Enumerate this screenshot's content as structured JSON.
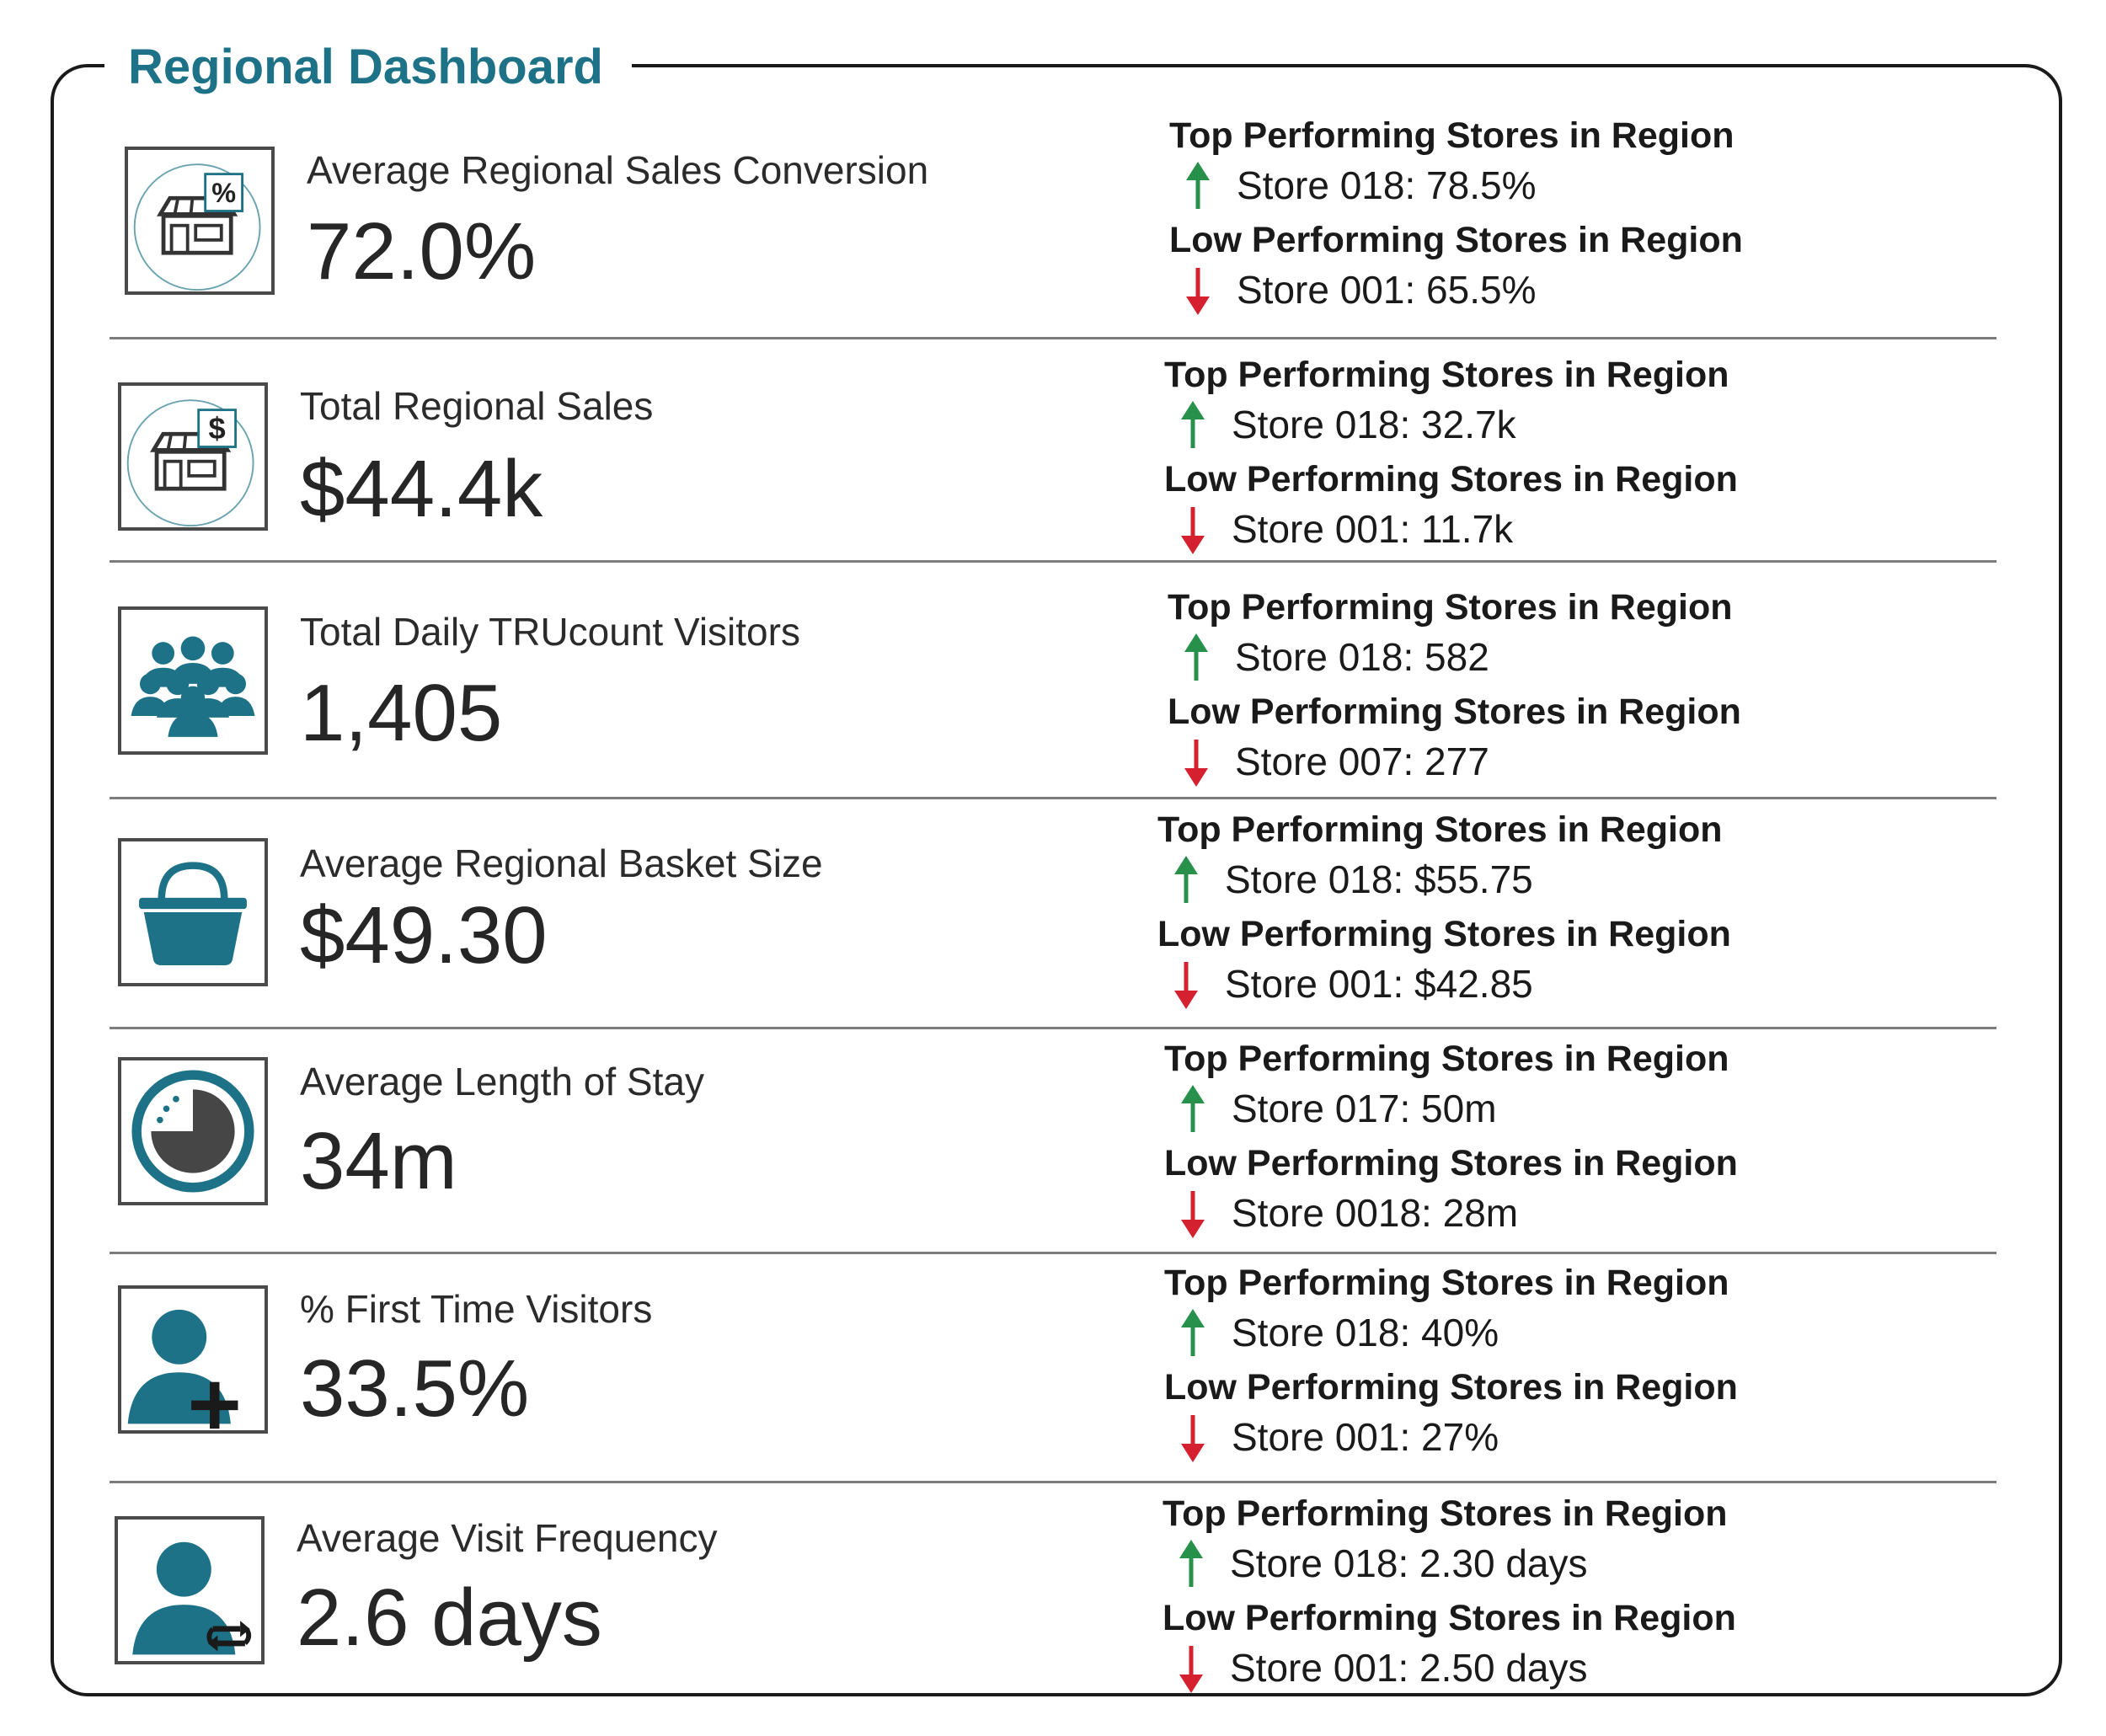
{
  "dashboard": {
    "title": "Regional Dashboard",
    "colors": {
      "accent": "#1e7287",
      "up_arrow": "#27904a",
      "down_arrow": "#d4202f"
    },
    "metrics": [
      {
        "icon": "store-percent-icon",
        "label": "Average Regional Sales Conversion",
        "value": "72.0%",
        "top_heading": "Top Performing Stores in Region",
        "top_store": "Store 018: 78.5%",
        "low_heading": "Low Performing Stores in Region",
        "low_store": "Store 001: 65.5%"
      },
      {
        "icon": "store-dollar-icon",
        "label": "Total Regional Sales",
        "value": "$44.4k",
        "top_heading": "Top Performing Stores in Region",
        "top_store": "Store 018: 32.7k",
        "low_heading": "Low Performing Stores in Region",
        "low_store": "Store 001: 11.7k"
      },
      {
        "icon": "crowd-icon",
        "label": "Total Daily TRUcount Visitors",
        "value": "1,405",
        "top_heading": "Top Performing Stores in Region",
        "top_store": "Store 018: 582",
        "low_heading": "Low Performing Stores in Region",
        "low_store": "Store 007: 277"
      },
      {
        "icon": "basket-icon",
        "label": "Average Regional Basket Size",
        "value": "$49.30",
        "top_heading": "Top Performing Stores in Region",
        "top_store": "Store 018: $55.75",
        "low_heading": "Low Performing Stores in Region",
        "low_store": "Store 001: $42.85"
      },
      {
        "icon": "clock-icon",
        "label": "Average Length of Stay",
        "value": "34m",
        "top_heading": "Top Performing Stores in Region",
        "top_store": "Store 017: 50m",
        "low_heading": "Low Performing Stores in Region",
        "low_store": "Store 0018: 28m"
      },
      {
        "icon": "user-add-icon",
        "label": "% First Time Visitors",
        "value": "33.5%",
        "top_heading": "Top Performing Stores in Region",
        "top_store": "Store 018: 40%",
        "low_heading": "Low Performing Stores in Region",
        "low_store": "Store 001: 27%"
      },
      {
        "icon": "user-repeat-icon",
        "label": "Average Visit Frequency",
        "value": "2.6 days",
        "top_heading": "Top Performing Stores in Region",
        "top_store": "Store 018: 2.30 days",
        "low_heading": "Low Performing Stores in Region",
        "low_store": "Store 001: 2.50 days"
      }
    ]
  }
}
